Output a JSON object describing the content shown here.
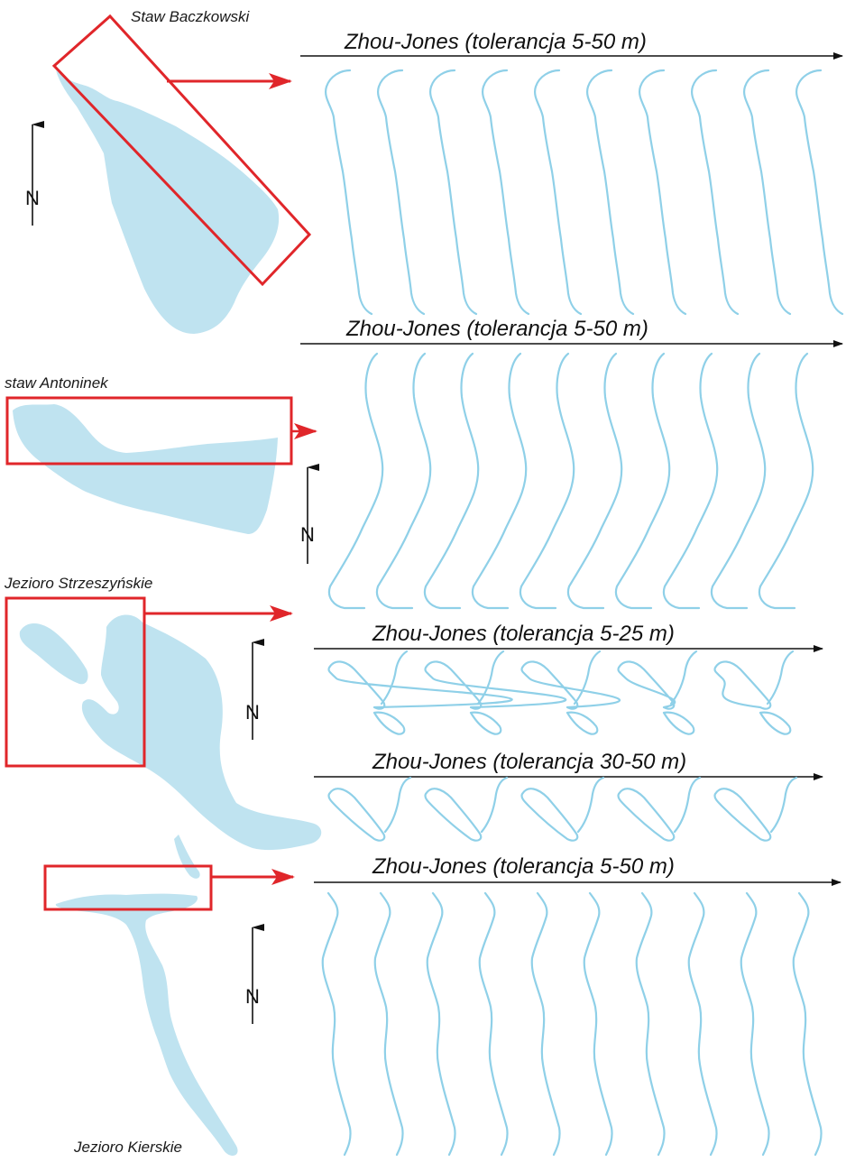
{
  "colors": {
    "water": "#bfe3f0",
    "outline": "#8fd0e8",
    "frame": "#e0262a",
    "axis": "#111111"
  },
  "north_label": "N",
  "lakes": [
    {
      "name": "Staw Baczkowski",
      "panel_title": "Zhou-Jones (tolerancja 5-50 m)",
      "versions": 10
    },
    {
      "name": "staw Antoninek",
      "panel_title": "Zhou-Jones (tolerancja 5-50 m)",
      "versions": 10
    },
    {
      "name": "Jezioro Strzeszyńskie",
      "panel_titles": [
        "Zhou-Jones (tolerancja 5-25 m)",
        "Zhou-Jones (tolerancja 30-50 m)"
      ],
      "versions": 5
    },
    {
      "name": "Jezioro Kierskie",
      "panel_title": "Zhou-Jones (tolerancja 5-50 m)",
      "versions": 10
    }
  ]
}
